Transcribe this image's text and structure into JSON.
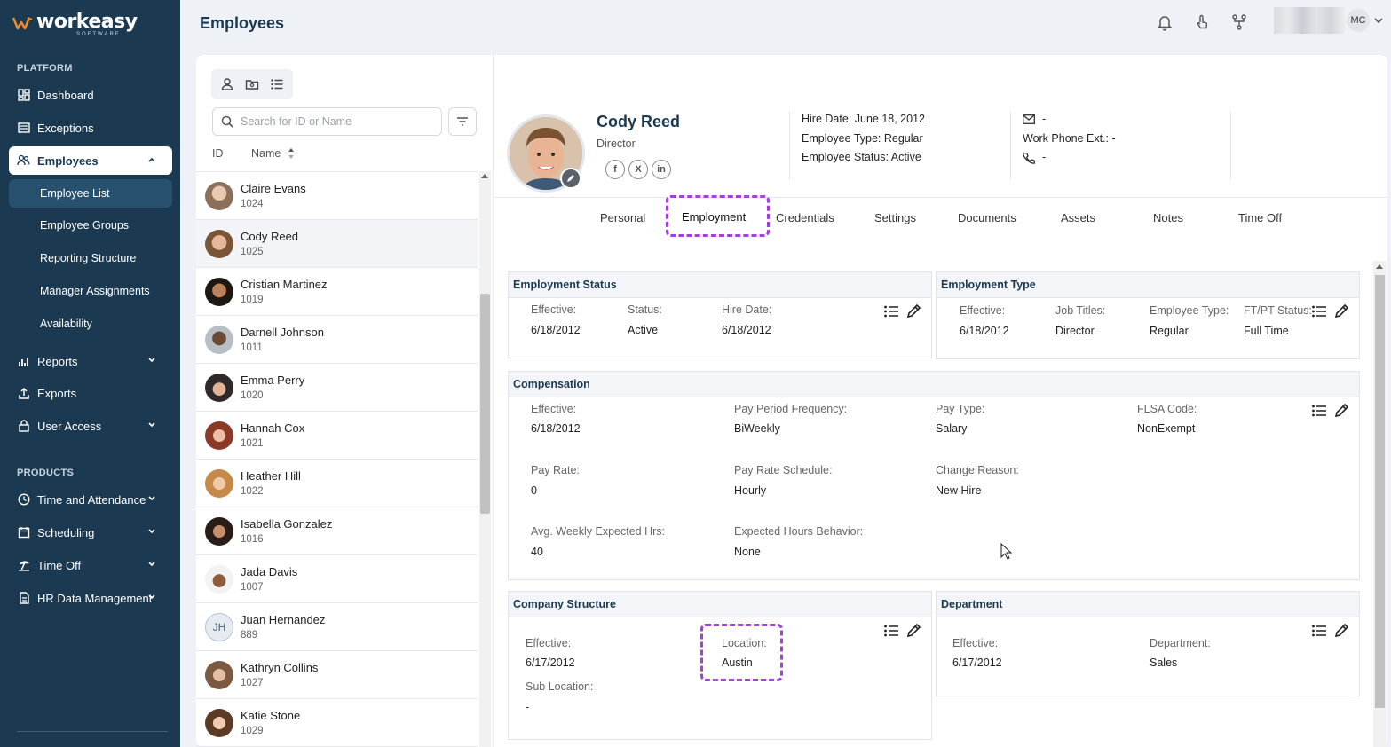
{
  "brand": {
    "name": "workeasy",
    "sub": "SOFTWARE"
  },
  "sidebar": {
    "platform_heading": "PLATFORM",
    "products_heading": "PRODUCTS",
    "items": [
      {
        "label": "Dashboard",
        "icon": "dashboard-icon"
      },
      {
        "label": "Exceptions",
        "icon": "exceptions-icon"
      },
      {
        "label": "Employees",
        "icon": "employees-icon",
        "expanded": true
      },
      {
        "label": "Reports",
        "icon": "reports-icon"
      },
      {
        "label": "Exports",
        "icon": "exports-icon"
      },
      {
        "label": "User Access",
        "icon": "lock-icon"
      },
      {
        "label": "Time and Attendance",
        "icon": "clock-icon"
      },
      {
        "label": "Scheduling",
        "icon": "calendar-icon"
      },
      {
        "label": "Time Off",
        "icon": "beach-icon"
      },
      {
        "label": "HR Data Management",
        "icon": "document-icon"
      }
    ],
    "employee_sub": [
      "Employee List",
      "Employee Groups",
      "Reporting Structure",
      "Manager Assignments",
      "Availability"
    ]
  },
  "header": {
    "title": "Employees",
    "user_initials": "MC"
  },
  "list": {
    "search_placeholder": "Search for ID or Name",
    "col_id": "ID",
    "col_name": "Name",
    "employees": [
      {
        "name": "Claire Evans",
        "id": "1024"
      },
      {
        "name": "Cody Reed",
        "id": "1025"
      },
      {
        "name": "Cristian Martinez",
        "id": "1019"
      },
      {
        "name": "Darnell Johnson",
        "id": "1011"
      },
      {
        "name": "Emma Perry",
        "id": "1020"
      },
      {
        "name": "Hannah Cox",
        "id": "1021"
      },
      {
        "name": "Heather Hill",
        "id": "1022"
      },
      {
        "name": "Isabella Gonzalez",
        "id": "1016"
      },
      {
        "name": "Jada Davis",
        "id": "1007"
      },
      {
        "name": "Juan Hernandez",
        "id": "889",
        "initials": "JH"
      },
      {
        "name": "Kathryn Collins",
        "id": "1027"
      },
      {
        "name": "Katie Stone",
        "id": "1029"
      }
    ]
  },
  "profile": {
    "name": "Cody Reed",
    "title": "Director",
    "hire_date": "Hire Date: June 18, 2012",
    "employee_type": "Employee Type: Regular",
    "employee_status": "Employee Status: Active",
    "email": "-",
    "work_phone_ext": "Work Phone Ext.: -",
    "phone": "-",
    "social": [
      "f",
      "X",
      "in"
    ]
  },
  "tabs": [
    "Personal",
    "Employment",
    "Credentials",
    "Settings",
    "Documents",
    "Assets",
    "Notes",
    "Time Off"
  ],
  "employment_status": {
    "title": "Employment Status",
    "effective_label": "Effective:",
    "effective": "6/18/2012",
    "status_label": "Status:",
    "status": "Active",
    "hire_label": "Hire Date:",
    "hire": "6/18/2012"
  },
  "employment_type": {
    "title": "Employment Type",
    "effective_label": "Effective:",
    "effective": "6/18/2012",
    "job_label": "Job Titles:",
    "job": "Director",
    "type_label": "Employee Type:",
    "type": "Regular",
    "ftpt_label": "FT/PT Status:",
    "ftpt": "Full Time"
  },
  "compensation": {
    "title": "Compensation",
    "effective_label": "Effective:",
    "effective": "6/18/2012",
    "freq_label": "Pay Period Frequency:",
    "freq": "BiWeekly",
    "paytype_label": "Pay Type:",
    "paytype": "Salary",
    "flsa_label": "FLSA Code:",
    "flsa": "NonExempt",
    "rate_label": "Pay Rate:",
    "rate": "0",
    "schedule_label": "Pay Rate Schedule:",
    "schedule": "Hourly",
    "reason_label": "Change Reason:",
    "reason": "New Hire",
    "avg_label": "Avg. Weekly Expected Hrs:",
    "avg": "40",
    "behavior_label": "Expected Hours Behavior:",
    "behavior": "None"
  },
  "company_structure": {
    "title": "Company Structure",
    "effective_label": "Effective:",
    "effective": "6/17/2012",
    "location_label": "Location:",
    "location": "Austin",
    "sublocation_label": "Sub Location:",
    "sublocation": "-"
  },
  "department": {
    "title": "Department",
    "effective_label": "Effective:",
    "effective": "6/17/2012",
    "dept_label": "Department:",
    "dept": "Sales"
  }
}
